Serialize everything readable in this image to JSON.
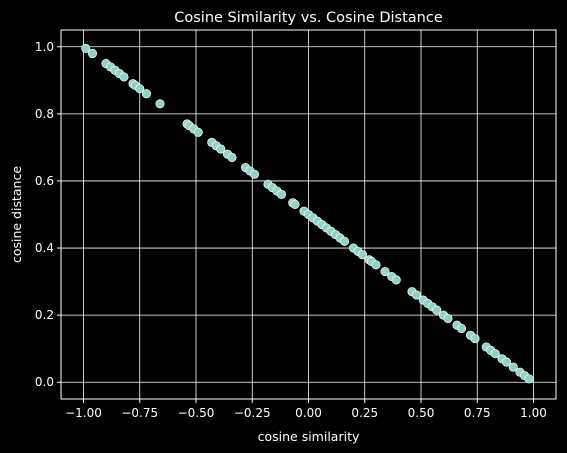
{
  "chart_data": {
    "type": "scatter",
    "title": "Cosine Similarity vs. Cosine Distance",
    "xlabel": "cosine similarity",
    "ylabel": "cosine distance",
    "xlim": [
      -1.1,
      1.1
    ],
    "ylim": [
      -0.05,
      1.05
    ],
    "xticks": [
      -1.0,
      -0.75,
      -0.5,
      -0.25,
      0.0,
      0.25,
      0.5,
      0.75,
      1.0
    ],
    "xtick_labels": [
      "−1.00",
      "−0.75",
      "−0.50",
      "−0.25",
      "0.00",
      "0.25",
      "0.50",
      "0.75",
      "1.00"
    ],
    "yticks": [
      0.0,
      0.2,
      0.4,
      0.6,
      0.8,
      1.0
    ],
    "ytick_labels": [
      "0.0",
      "0.2",
      "0.4",
      "0.6",
      "0.8",
      "1.0"
    ],
    "grid": true,
    "marker_color": "#8dd3c7",
    "x": [
      -0.99,
      -0.96,
      -0.9,
      -0.88,
      -0.86,
      -0.84,
      -0.82,
      -0.78,
      -0.77,
      -0.75,
      -0.72,
      -0.66,
      -0.54,
      -0.53,
      -0.51,
      -0.49,
      -0.43,
      -0.41,
      -0.39,
      -0.36,
      -0.34,
      -0.28,
      -0.26,
      -0.24,
      -0.18,
      -0.16,
      -0.14,
      -0.12,
      -0.07,
      -0.06,
      -0.02,
      0.0,
      0.02,
      0.04,
      0.06,
      0.08,
      0.1,
      0.12,
      0.14,
      0.16,
      0.2,
      0.22,
      0.24,
      0.27,
      0.28,
      0.3,
      0.34,
      0.37,
      0.39,
      0.46,
      0.48,
      0.51,
      0.53,
      0.55,
      0.57,
      0.6,
      0.62,
      0.66,
      0.68,
      0.72,
      0.74,
      0.79,
      0.81,
      0.83,
      0.86,
      0.88,
      0.91,
      0.94,
      0.96,
      0.98
    ],
    "y": [
      0.995,
      0.98,
      0.95,
      0.94,
      0.93,
      0.92,
      0.91,
      0.89,
      0.885,
      0.875,
      0.86,
      0.83,
      0.77,
      0.765,
      0.755,
      0.745,
      0.715,
      0.705,
      0.695,
      0.68,
      0.67,
      0.64,
      0.63,
      0.62,
      0.59,
      0.58,
      0.57,
      0.56,
      0.535,
      0.53,
      0.51,
      0.5,
      0.49,
      0.48,
      0.47,
      0.46,
      0.45,
      0.44,
      0.43,
      0.42,
      0.4,
      0.39,
      0.38,
      0.365,
      0.36,
      0.35,
      0.33,
      0.315,
      0.305,
      0.27,
      0.26,
      0.245,
      0.235,
      0.225,
      0.215,
      0.2,
      0.19,
      0.17,
      0.16,
      0.14,
      0.13,
      0.105,
      0.095,
      0.085,
      0.07,
      0.06,
      0.045,
      0.03,
      0.02,
      0.01
    ]
  }
}
